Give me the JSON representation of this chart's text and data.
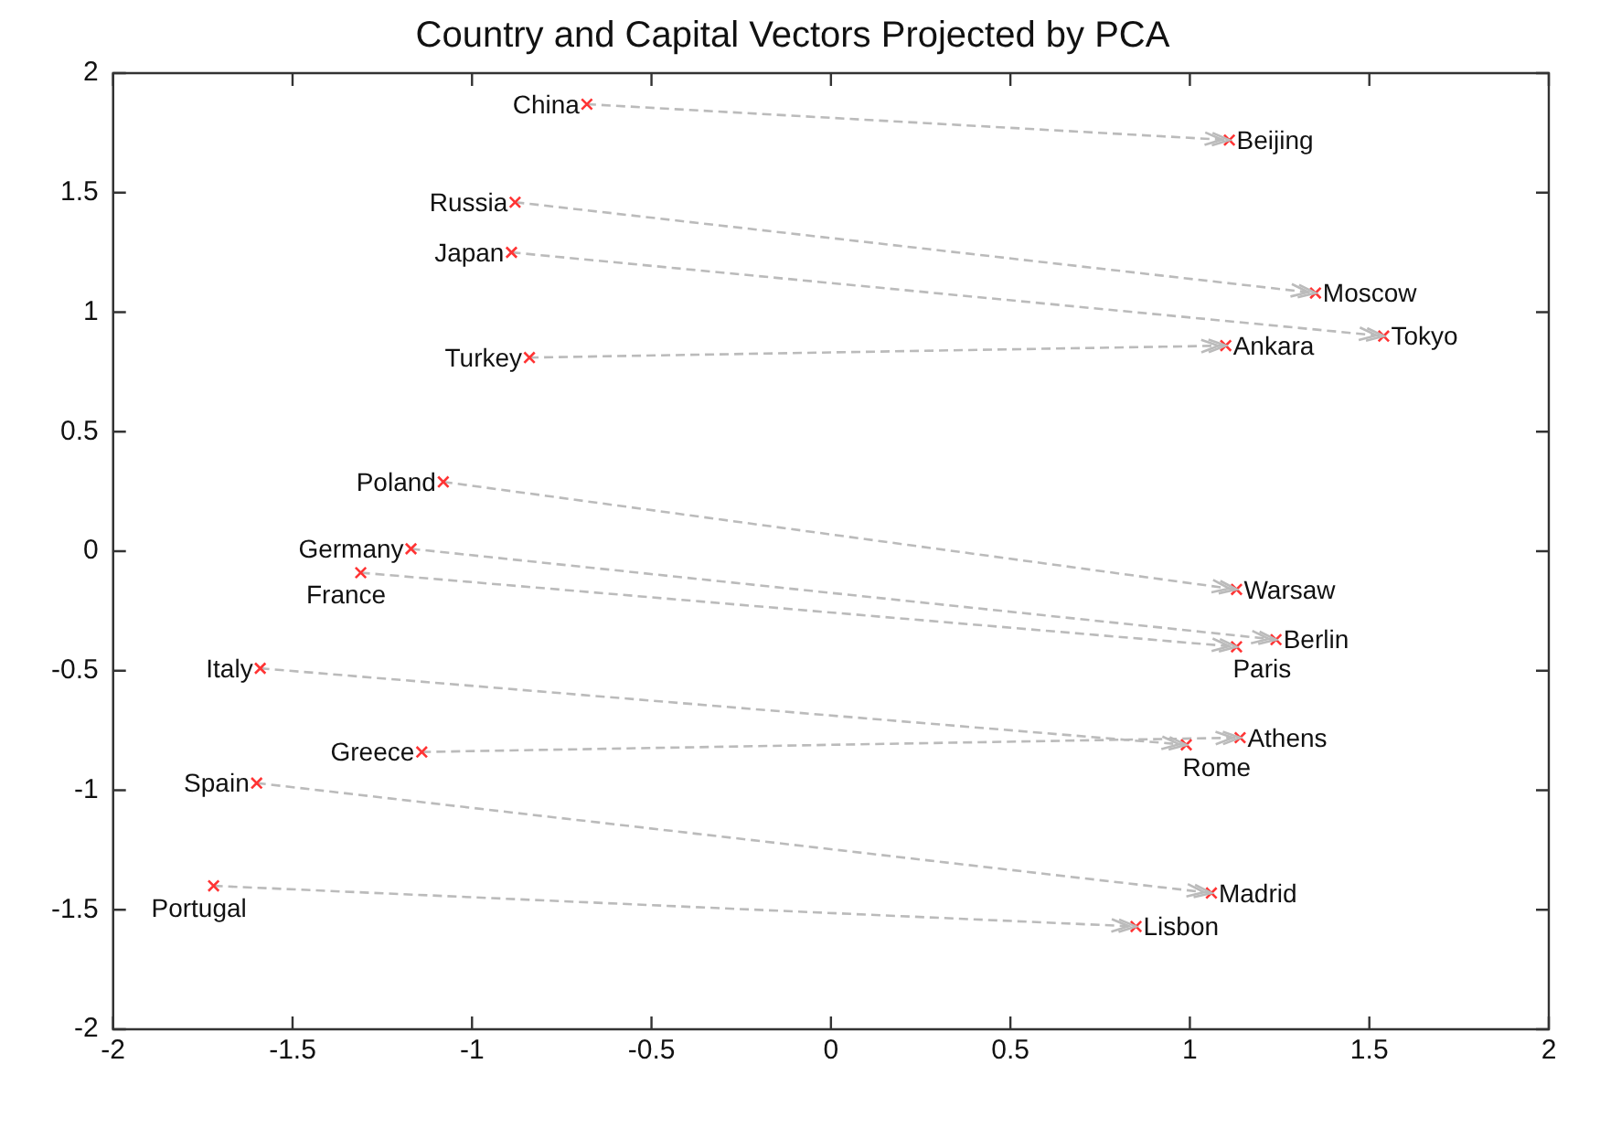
{
  "chart_data": {
    "type": "scatter",
    "title": "Country and Capital Vectors Projected by PCA",
    "xlim": [
      -2,
      2
    ],
    "xticks": [
      -2,
      -1.5,
      -1,
      -0.5,
      0,
      0.5,
      1,
      1.5,
      2
    ],
    "ylim": [
      -2,
      2
    ],
    "yticks": [
      -2,
      -1.5,
      -1,
      -0.5,
      0,
      0.5,
      1,
      1.5,
      2
    ],
    "grid": false,
    "legend": false,
    "series": [
      {
        "color": "#ff3333",
        "marker": "cross",
        "x": [
          -0.68,
          -0.88,
          -0.89,
          -0.84,
          -1.08,
          -1.17,
          -1.31,
          -1.59,
          -1.14,
          -1.6,
          -1.72
        ],
        "values": [
          1.87,
          1.46,
          1.25,
          0.81,
          0.29,
          0.01,
          -0.09,
          -0.49,
          -0.84,
          -0.97,
          -1.4
        ]
      },
      {
        "color": "#ff3333",
        "marker": "cross",
        "x": [
          1.11,
          1.35,
          1.54,
          1.1,
          1.13,
          1.24,
          1.13,
          0.99,
          1.14,
          1.06,
          0.85
        ],
        "values": [
          1.72,
          1.08,
          0.9,
          0.86,
          -0.16,
          -0.37,
          -0.4,
          -0.81,
          -0.78,
          -1.43,
          -1.57
        ]
      },
      {
        "type": "line",
        "color": "#bbbbbb",
        "line_style": "dashed",
        "marker": "none",
        "x": [
          -0.68,
          1.11
        ],
        "values": [
          1.87,
          1.72
        ]
      },
      {
        "type": "line",
        "color": "#bbbbbb",
        "line_style": "dashed",
        "marker": "none",
        "x": [
          -0.88,
          1.35
        ],
        "values": [
          1.46,
          1.08
        ]
      },
      {
        "type": "line",
        "color": "#bbbbbb",
        "line_style": "dashed",
        "marker": "none",
        "x": [
          -0.89,
          1.54
        ],
        "values": [
          1.25,
          0.9
        ]
      },
      {
        "type": "line",
        "color": "#bbbbbb",
        "line_style": "dashed",
        "marker": "none",
        "x": [
          -0.84,
          1.1
        ],
        "values": [
          0.81,
          0.86
        ]
      },
      {
        "type": "line",
        "color": "#bbbbbb",
        "line_style": "dashed",
        "marker": "none",
        "x": [
          -1.08,
          1.13
        ],
        "values": [
          0.29,
          -0.16
        ]
      },
      {
        "type": "line",
        "color": "#bbbbbb",
        "line_style": "dashed",
        "marker": "none",
        "x": [
          -1.17,
          1.24
        ],
        "values": [
          0.01,
          -0.37
        ]
      },
      {
        "type": "line",
        "color": "#bbbbbb",
        "line_style": "dashed",
        "marker": "none",
        "x": [
          -1.31,
          1.13
        ],
        "values": [
          -0.09,
          -0.4
        ]
      },
      {
        "type": "line",
        "color": "#bbbbbb",
        "line_style": "dashed",
        "marker": "none",
        "x": [
          -1.59,
          0.99
        ],
        "values": [
          -0.49,
          -0.81
        ]
      },
      {
        "type": "line",
        "color": "#bbbbbb",
        "line_style": "dashed",
        "marker": "none",
        "x": [
          -1.14,
          1.14
        ],
        "values": [
          -0.84,
          -0.78
        ]
      },
      {
        "type": "line",
        "color": "#bbbbbb",
        "line_style": "dashed",
        "marker": "none",
        "x": [
          -1.6,
          1.06
        ],
        "values": [
          -0.97,
          -1.43
        ]
      },
      {
        "type": "line",
        "color": "#bbbbbb",
        "line_style": "dashed",
        "marker": "none",
        "x": [
          -1.72,
          0.85
        ],
        "values": [
          -1.4,
          -1.57
        ]
      }
    ],
    "annotations": [
      {
        "text": "China",
        "x": -0.68,
        "y": 1.87
      },
      {
        "text": "Russia",
        "x": -0.88,
        "y": 1.46
      },
      {
        "text": "Japan",
        "x": -0.89,
        "y": 1.25
      },
      {
        "text": "Turkey",
        "x": -0.84,
        "y": 0.81
      },
      {
        "text": "Poland",
        "x": -1.08,
        "y": 0.29
      },
      {
        "text": "Germany",
        "x": -1.17,
        "y": 0.01
      },
      {
        "text": "France",
        "x": -1.31,
        "y": -0.09
      },
      {
        "text": "Italy",
        "x": -1.59,
        "y": -0.49
      },
      {
        "text": "Greece",
        "x": -1.14,
        "y": -0.84
      },
      {
        "text": "Spain",
        "x": -1.6,
        "y": -0.97
      },
      {
        "text": "Portugal",
        "x": -1.72,
        "y": -1.4
      },
      {
        "text": "Beijing",
        "x": 1.11,
        "y": 1.72
      },
      {
        "text": "Moscow",
        "x": 1.35,
        "y": 1.08
      },
      {
        "text": "Tokyo",
        "x": 1.54,
        "y": 0.9
      },
      {
        "text": "Ankara",
        "x": 1.1,
        "y": 0.86
      },
      {
        "text": "Warsaw",
        "x": 1.13,
        "y": -0.16
      },
      {
        "text": "Berlin",
        "x": 1.24,
        "y": -0.37
      },
      {
        "text": "Paris",
        "x": 1.13,
        "y": -0.4
      },
      {
        "text": "Rome",
        "x": 0.99,
        "y": -0.81
      },
      {
        "text": "Athens",
        "x": 1.14,
        "y": -0.78
      },
      {
        "text": "Madrid",
        "x": 1.06,
        "y": -1.43
      },
      {
        "text": "Lisbon",
        "x": 0.85,
        "y": -1.57
      }
    ]
  }
}
